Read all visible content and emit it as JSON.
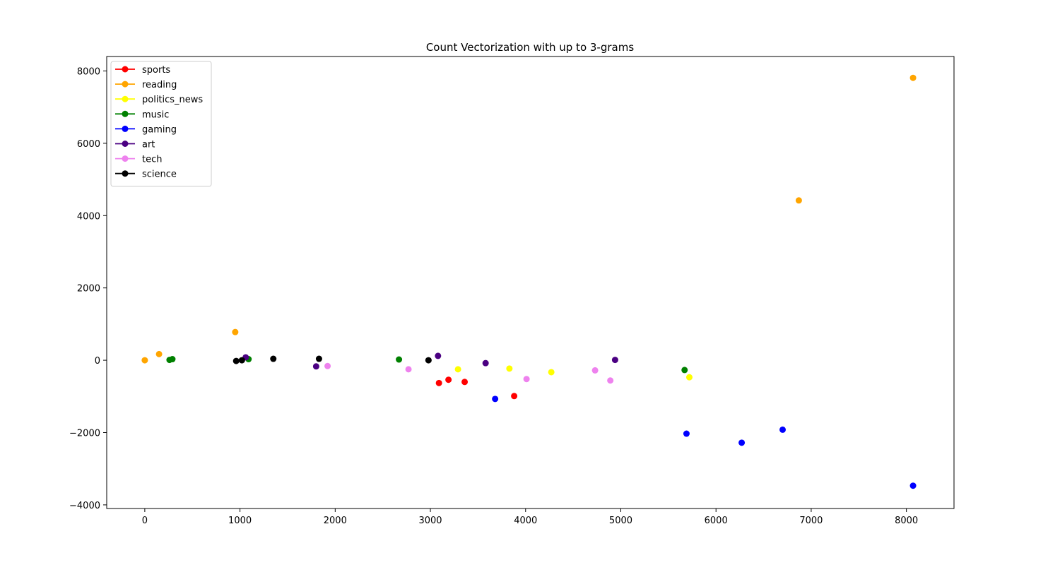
{
  "chart_data": {
    "type": "scatter",
    "title": "Count Vectorization with up to 3-grams",
    "xlabel": "",
    "ylabel": "",
    "xlim": [
      -400,
      8500
    ],
    "ylim": [
      -4100,
      8400
    ],
    "x_ticks": [
      0,
      1000,
      2000,
      3000,
      4000,
      5000,
      6000,
      7000,
      8000
    ],
    "y_ticks": [
      -4000,
      -2000,
      0,
      2000,
      4000,
      6000,
      8000
    ],
    "x_tick_labels": [
      "0",
      "1000",
      "2000",
      "3000",
      "4000",
      "5000",
      "6000",
      "7000",
      "8000"
    ],
    "y_tick_labels": [
      "−4000",
      "−2000",
      "0",
      "2000",
      "4000",
      "6000",
      "8000"
    ],
    "grid": false,
    "legend_position": "top-left",
    "series": [
      {
        "name": "sports",
        "color": "#ff0000",
        "points": [
          [
            3090,
            -630
          ],
          [
            3190,
            -540
          ],
          [
            3360,
            -600
          ],
          [
            3880,
            -990
          ]
        ]
      },
      {
        "name": "reading",
        "color": "#ffa500",
        "points": [
          [
            0,
            0
          ],
          [
            150,
            170
          ],
          [
            950,
            780
          ],
          [
            6870,
            4420
          ],
          [
            8070,
            7810
          ]
        ]
      },
      {
        "name": "politics_news",
        "color": "#ffff00",
        "points": [
          [
            3290,
            -250
          ],
          [
            3830,
            -230
          ],
          [
            4270,
            -330
          ],
          [
            5720,
            -470
          ]
        ]
      },
      {
        "name": "music",
        "color": "#008000",
        "points": [
          [
            260,
            10
          ],
          [
            290,
            30
          ],
          [
            1090,
            30
          ],
          [
            2670,
            20
          ],
          [
            5670,
            -270
          ]
        ]
      },
      {
        "name": "gaming",
        "color": "#0000ff",
        "points": [
          [
            3680,
            -1070
          ],
          [
            5690,
            -2030
          ],
          [
            6270,
            -2280
          ],
          [
            6700,
            -1920
          ],
          [
            8070,
            -3470
          ]
        ]
      },
      {
        "name": "art",
        "color": "#4b0082",
        "points": [
          [
            1060,
            80
          ],
          [
            1800,
            -170
          ],
          [
            3080,
            120
          ],
          [
            3580,
            -80
          ],
          [
            4940,
            10
          ]
        ]
      },
      {
        "name": "tech",
        "color": "#ee82ee",
        "points": [
          [
            1920,
            -160
          ],
          [
            2770,
            -250
          ],
          [
            4010,
            -520
          ],
          [
            4730,
            -280
          ],
          [
            4890,
            -560
          ]
        ]
      },
      {
        "name": "science",
        "color": "#000000",
        "points": [
          [
            960,
            -20
          ],
          [
            1020,
            0
          ],
          [
            1350,
            40
          ],
          [
            1830,
            40
          ],
          [
            2980,
            0
          ]
        ]
      }
    ]
  }
}
